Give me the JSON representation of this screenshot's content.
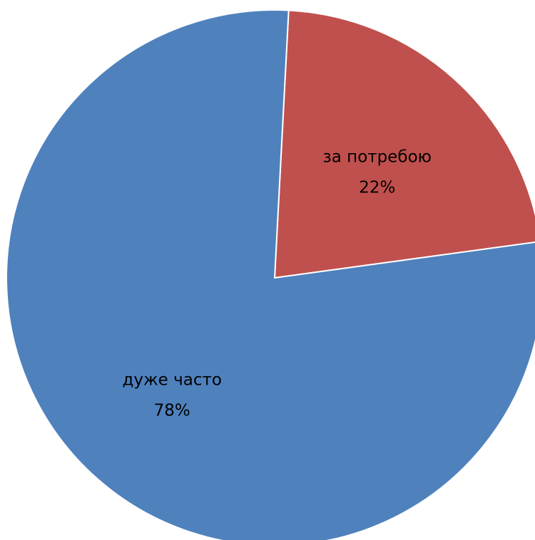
{
  "chart_data": {
    "type": "pie",
    "categories": [
      "за потребою",
      "дуже часто"
    ],
    "values": [
      22,
      78
    ],
    "labels": [
      "22%",
      "78%"
    ],
    "colors": [
      "#C0504D",
      "#4F81BD"
    ],
    "title": "",
    "legend": "none"
  }
}
